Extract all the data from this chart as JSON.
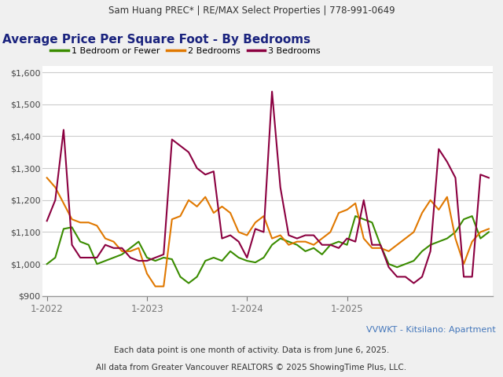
{
  "header_text": "Sam Huang PREC* | RE/MAX Select Properties | 778-991-0649",
  "title": "Average Price Per Square Foot - By Bedrooms",
  "footer1": "VVWKT - Kitsilano: Apartment",
  "footer2": "Each data point is one month of activity. Data is from June 6, 2025.",
  "footer3": "All data from Greater Vancouver REALTORS © 2025 ShowingTime Plus, LLC.",
  "legend": [
    "1 Bedroom or Fewer",
    "2 Bedrooms",
    "3 Bedrooms"
  ],
  "legend_colors": [
    "#3a8c00",
    "#e07800",
    "#8b0040"
  ],
  "xlabels": [
    "1-2022",
    "1-2023",
    "1-2024",
    "1-2025"
  ],
  "xtick_positions": [
    0,
    12,
    24,
    36
  ],
  "ylim": [
    900,
    1620
  ],
  "yticks": [
    900,
    1000,
    1100,
    1200,
    1300,
    1400,
    1500,
    1600
  ],
  "series_1bed": [
    1000,
    1020,
    1110,
    1115,
    1070,
    1060,
    1000,
    1010,
    1020,
    1030,
    1050,
    1070,
    1020,
    1010,
    1020,
    1015,
    960,
    940,
    960,
    1010,
    1020,
    1010,
    1040,
    1020,
    1010,
    1005,
    1020,
    1060,
    1080,
    1070,
    1060,
    1040,
    1050,
    1030,
    1060,
    1070,
    1060,
    1150,
    1140,
    1130,
    1060,
    1000,
    990,
    1000,
    1010,
    1040,
    1060,
    1070,
    1080,
    1100,
    1140,
    1150,
    1080,
    1100
  ],
  "series_2bed": [
    1270,
    1240,
    1190,
    1140,
    1130,
    1130,
    1120,
    1080,
    1070,
    1040,
    1040,
    1050,
    970,
    930,
    930,
    1140,
    1150,
    1200,
    1180,
    1210,
    1160,
    1180,
    1160,
    1100,
    1090,
    1130,
    1150,
    1080,
    1090,
    1060,
    1070,
    1070,
    1060,
    1080,
    1100,
    1160,
    1170,
    1190,
    1080,
    1050,
    1050,
    1040,
    1060,
    1080,
    1100,
    1160,
    1200,
    1170,
    1210,
    1080,
    1000,
    1070,
    1100,
    1110
  ],
  "series_3bed": [
    1135,
    1200,
    1420,
    1060,
    1020,
    1020,
    1020,
    1060,
    1050,
    1050,
    1020,
    1010,
    1010,
    1020,
    1030,
    1390,
    1370,
    1350,
    1300,
    1280,
    1290,
    1080,
    1090,
    1070,
    1020,
    1110,
    1100,
    1540,
    1240,
    1090,
    1080,
    1090,
    1090,
    1060,
    1060,
    1050,
    1080,
    1070,
    1200,
    1060,
    1060,
    990,
    960,
    960,
    940,
    960,
    1040,
    1360,
    1320,
    1270,
    960,
    960,
    1280,
    1270
  ],
  "header_bg": "#e8e8e8",
  "chart_bg": "#ffffff",
  "fig_bg": "#f0f0f0",
  "title_color": "#1a237e",
  "footer1_color": "#4477bb",
  "footer_color": "#333333",
  "header_fontsize": 8.5,
  "title_fontsize": 11,
  "legend_fontsize": 8,
  "tick_fontsize": 8,
  "footer_fontsize": 7.5,
  "line_width": 1.5
}
